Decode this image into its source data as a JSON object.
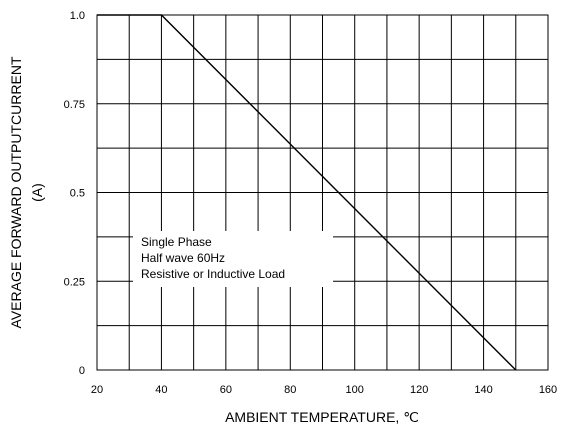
{
  "chart_data": {
    "type": "line",
    "title": "",
    "xlabel": "AMBIENT TEMPERATURE, ℃",
    "ylabel_lines": [
      "AVERAGE FORWARD OUTPUTCURRENT",
      "(A)"
    ],
    "xlim": [
      20,
      160
    ],
    "ylim": [
      0,
      1.0
    ],
    "x_ticks": [
      20,
      40,
      60,
      80,
      100,
      120,
      140,
      160
    ],
    "x_tick_labels": [
      "20",
      "40",
      "60",
      "80",
      "100",
      "120",
      "140",
      "160"
    ],
    "y_ticks": [
      0,
      0.25,
      0.5,
      0.75,
      1.0
    ],
    "y_tick_labels": [
      "0",
      "0.25",
      "0.5",
      "0.75",
      "1.0"
    ],
    "x_grid": [
      20,
      30,
      40,
      50,
      60,
      70,
      80,
      90,
      100,
      110,
      120,
      130,
      140,
      150,
      160
    ],
    "y_grid": [
      0,
      0.125,
      0.25,
      0.375,
      0.5,
      0.625,
      0.75,
      0.875,
      1.0
    ],
    "grid": true,
    "series": [
      {
        "x": [
          20,
          40,
          150
        ],
        "y": [
          1.0,
          1.0,
          0
        ],
        "color": "#000000"
      }
    ],
    "annotation": [
      "Single Phase",
      "Half wave 60Hz",
      "Resistive or Inductive Load"
    ]
  }
}
